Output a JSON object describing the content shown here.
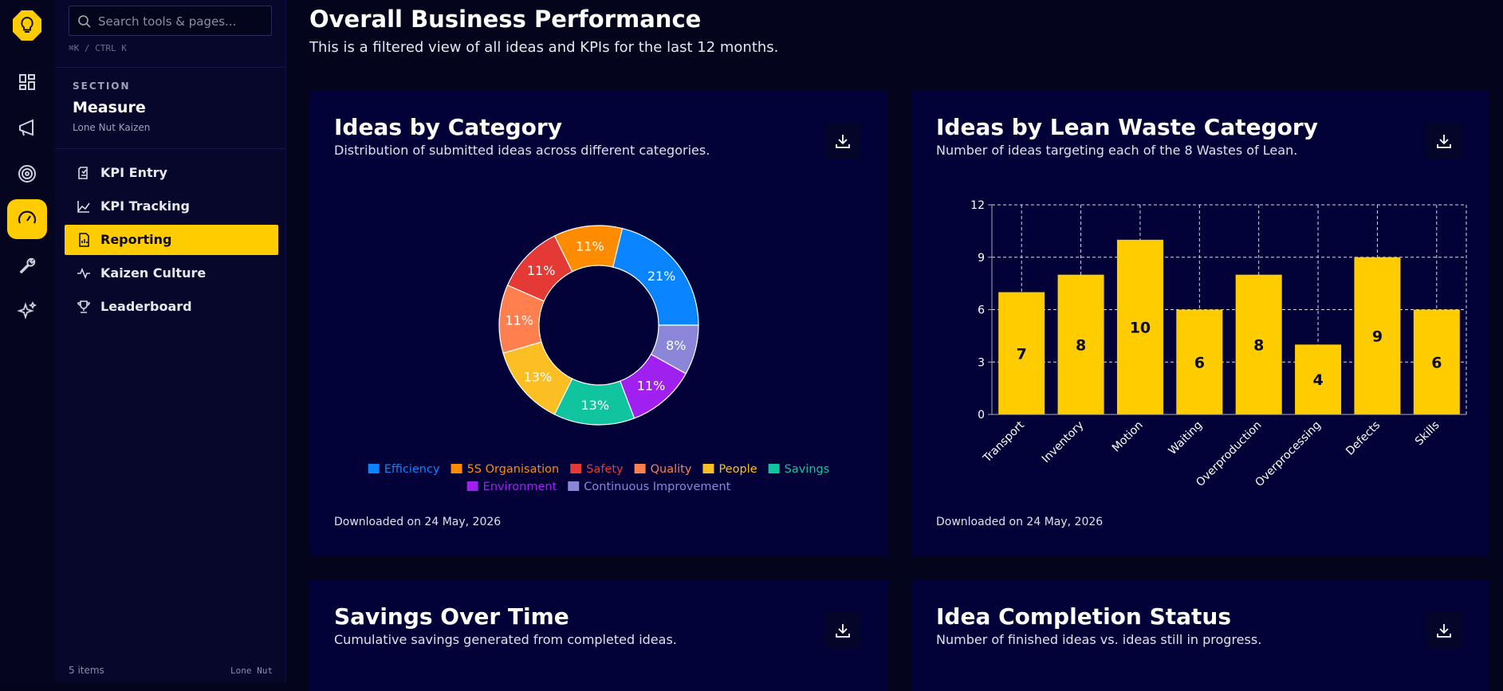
{
  "sidebar": {
    "search_placeholder": "Search tools & pages...",
    "shortcut": "⌘K / CTRL K",
    "section_label": "SECTION",
    "section_title": "Measure",
    "section_subtitle": "Lone Nut Kaizen",
    "nav": [
      "KPI Entry",
      "KPI Tracking",
      "Reporting",
      "Kaizen Culture",
      "Leaderboard"
    ],
    "active": "Reporting",
    "footer_count": "5 items",
    "footer_brand": "Lone Nut"
  },
  "header": {
    "title": "Overall Business Performance",
    "subtitle": "This is a filtered view of all ideas and KPIs for the last 12 months."
  },
  "cards": [
    {
      "title": "Ideas by Category",
      "subtitle": "Distribution of submitted ideas across different categories.",
      "chart": {
        "type": "pie",
        "categories": [
          "Efficiency",
          "5S Organisation",
          "Safety",
          "Quality",
          "People",
          "Savings",
          "Environment",
          "Continuous Improvement"
        ],
        "values": [
          21,
          11,
          11,
          11,
          13,
          13,
          11,
          8
        ],
        "value_labels": [
          "21%",
          "11%",
          "11%",
          "11%",
          "13%",
          "13%",
          "11%",
          "8%"
        ],
        "colors": [
          "#0a84ff",
          "#ff8c00",
          "#e53935",
          "#ff7f4f",
          "#fbbf24",
          "#10c4a0",
          "#a020f0",
          "#8b86d8"
        ]
      },
      "footer": "Downloaded on 24 May, 2026"
    },
    {
      "title": "Ideas by Lean Waste Category",
      "subtitle": "Number of ideas targeting each of the 8 Wastes of Lean.",
      "chart": {
        "type": "bar",
        "categories": [
          "Transport",
          "Inventory",
          "Motion",
          "Waiting",
          "Overproduction",
          "Overprocessing",
          "Defects",
          "Skills"
        ],
        "values": [
          7,
          8,
          10,
          6,
          8,
          4,
          9,
          6
        ],
        "color": "#ffcc00",
        "ylim": [
          0,
          12
        ],
        "yticks": [
          0,
          3,
          6,
          9,
          12
        ],
        "grid": true
      },
      "footer": "Downloaded on 24 May, 2026"
    },
    {
      "title": "Savings Over Time",
      "subtitle": "Cumulative savings generated from completed ideas."
    },
    {
      "title": "Idea Completion Status",
      "subtitle": "Number of finished ideas vs. ideas still in progress."
    }
  ]
}
